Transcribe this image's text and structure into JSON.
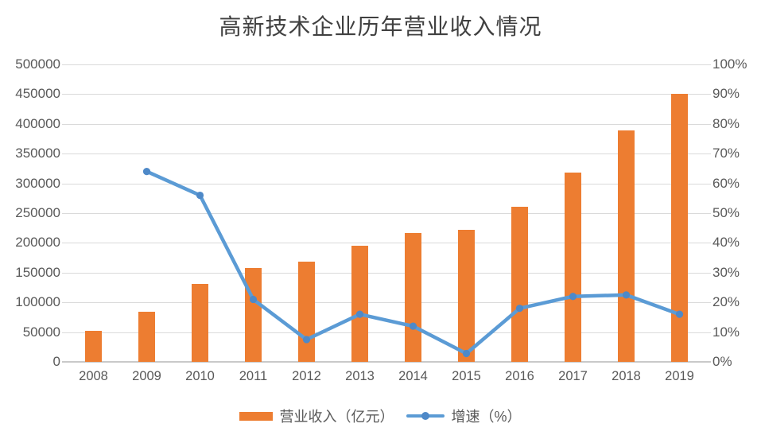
{
  "title": "高新技术企业历年营业收入情况",
  "colors": {
    "bar": "#ED7D31",
    "line": "#5B9BD5",
    "marker": "#4E89C8",
    "grid": "#DADADA",
    "axis_line": "#C9C9C9",
    "axis_text": "#595959",
    "title_text": "#404040"
  },
  "legend": {
    "items": [
      {
        "label": "营业收入（亿元）",
        "swatch": "bar-swatch"
      },
      {
        "label": "增速（%）",
        "swatch": "line-swatch"
      }
    ]
  },
  "chart_data": {
    "type": "bar+line combo",
    "title": "高新技术企业历年营业收入情况",
    "categories": [
      "2008",
      "2009",
      "2010",
      "2011",
      "2012",
      "2013",
      "2014",
      "2015",
      "2016",
      "2017",
      "2018",
      "2019"
    ],
    "series": [
      {
        "name": "营业收入（亿元）",
        "type": "bar",
        "axis": "left",
        "color": "#ED7D31",
        "values": [
          52000,
          84000,
          131000,
          158000,
          168000,
          195000,
          216000,
          222000,
          261000,
          318000,
          389000,
          450000
        ]
      },
      {
        "name": "增速（%）",
        "type": "line",
        "axis": "right",
        "color": "#5B9BD5",
        "values": [
          null,
          64,
          56,
          21,
          7.5,
          16,
          12,
          2.8,
          18,
          22,
          22.5,
          16
        ]
      }
    ],
    "left_axis": {
      "min": 0,
      "max": 500000,
      "ticks": [
        "0",
        "50000",
        "100000",
        "150000",
        "200000",
        "250000",
        "300000",
        "350000",
        "400000",
        "450000",
        "500000"
      ]
    },
    "right_axis": {
      "min": 0,
      "max": 100,
      "ticks": [
        "0%",
        "10%",
        "20%",
        "30%",
        "40%",
        "50%",
        "60%",
        "70%",
        "80%",
        "90%",
        "100%"
      ]
    },
    "grid": true,
    "legend_position": "bottom"
  }
}
